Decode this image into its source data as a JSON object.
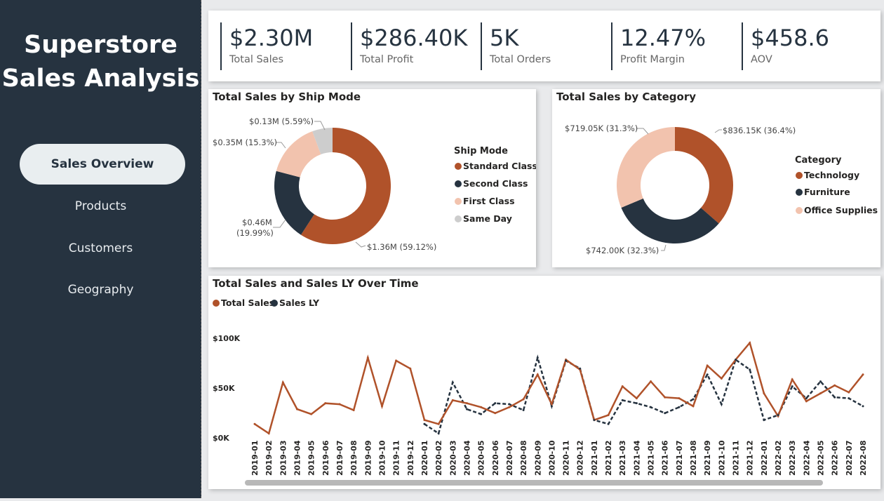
{
  "sidebar": {
    "title_line1": "Superstore",
    "title_line2": "Sales Analysis",
    "nav": [
      {
        "label": "Sales Overview",
        "active": true
      },
      {
        "label": "Products",
        "active": false
      },
      {
        "label": "Customers",
        "active": false
      },
      {
        "label": "Geography",
        "active": false
      }
    ]
  },
  "kpis": [
    {
      "value": "$2.30M",
      "label": "Total Sales"
    },
    {
      "value": "$286.40K",
      "label": "Total Profit"
    },
    {
      "value": "5K",
      "label": "Total Orders"
    },
    {
      "value": "12.47%",
      "label": "Profit Margin"
    },
    {
      "value": "$458.6",
      "label": "AOV"
    }
  ],
  "colors": {
    "accent": "#b0522a",
    "dark": "#263340",
    "light": "#f2c3ae",
    "grey": "#cdcdcd"
  },
  "chart_data": [
    {
      "type": "pie",
      "title": "Total Sales by Ship Mode",
      "legend_title": "Ship Mode",
      "legend_position": "right",
      "slices": [
        {
          "name": "Standard Class",
          "value": 1.36,
          "percent": 59.12,
          "label": "$1.36M (59.12%)",
          "color": "#b0522a"
        },
        {
          "name": "Second Class",
          "value": 0.46,
          "percent": 19.99,
          "label_line1": "$0.46M",
          "label_line2": "(19.99%)",
          "color": "#263340"
        },
        {
          "name": "First Class",
          "value": 0.35,
          "percent": 15.3,
          "label": "$0.35M (15.3%)",
          "color": "#f2c3ae"
        },
        {
          "name": "Same Day",
          "value": 0.13,
          "percent": 5.59,
          "label": "$0.13M (5.59%)",
          "color": "#cdcdcd"
        }
      ]
    },
    {
      "type": "pie",
      "title": "Total Sales by Category",
      "legend_title": "Category",
      "legend_position": "right",
      "slices": [
        {
          "name": "Technology",
          "value": 836.15,
          "percent": 36.4,
          "label": "$836.15K (36.4%)",
          "color": "#b0522a"
        },
        {
          "name": "Furniture",
          "value": 742.0,
          "percent": 32.3,
          "label": "$742.00K (32.3%)",
          "color": "#263340"
        },
        {
          "name": "Office Supplies",
          "value": 719.05,
          "percent": 31.3,
          "label": "$719.05K (31.3%)",
          "color": "#f2c3ae"
        }
      ]
    },
    {
      "type": "line",
      "title": "Total Sales and Sales LY Over Time",
      "legend_position": "top-left",
      "y_ticks": [
        "$100K",
        "$50K",
        "$0K"
      ],
      "ylim": [
        0,
        100000
      ],
      "x": [
        "2019-01",
        "2019-02",
        "2019-03",
        "2019-04",
        "2019-05",
        "2019-06",
        "2019-07",
        "2019-08",
        "2019-09",
        "2019-10",
        "2019-11",
        "2019-12",
        "2020-01",
        "2020-02",
        "2020-03",
        "2020-04",
        "2020-05",
        "2020-06",
        "2020-07",
        "2020-08",
        "2020-09",
        "2020-10",
        "2020-11",
        "2020-12",
        "2021-01",
        "2021-02",
        "2021-03",
        "2021-04",
        "2021-05",
        "2021-06",
        "2021-07",
        "2021-08",
        "2021-09",
        "2021-10",
        "2021-11",
        "2021-12",
        "2022-01",
        "2022-02",
        "2022-03",
        "2022-04",
        "2022-05",
        "2022-06",
        "2022-07",
        "2022-08"
      ],
      "series": [
        {
          "name": "Total Sales",
          "color": "#b0522a",
          "dash": false,
          "values": [
            14000,
            4500,
            56000,
            29000,
            24000,
            35000,
            34000,
            28000,
            81000,
            32000,
            78000,
            70000,
            18000,
            14000,
            38000,
            35000,
            31000,
            25000,
            31000,
            39000,
            64000,
            34000,
            79000,
            69000,
            18000,
            23000,
            52000,
            40000,
            57000,
            41000,
            40000,
            32000,
            73000,
            60000,
            79000,
            96000,
            45000,
            22000,
            59000,
            37000,
            45000,
            53000,
            46000,
            64000
          ]
        },
        {
          "name": "Sales LY",
          "color": "#263340",
          "dash": true,
          "values": [
            null,
            null,
            null,
            null,
            null,
            null,
            null,
            null,
            null,
            null,
            null,
            null,
            14000,
            4500,
            56000,
            29000,
            24000,
            35000,
            34000,
            28000,
            81000,
            32000,
            78000,
            70000,
            18000,
            14000,
            38000,
            35000,
            31000,
            25000,
            31000,
            39000,
            64000,
            34000,
            79000,
            69000,
            18000,
            23000,
            52000,
            40000,
            57000,
            41000,
            40000,
            32000
          ]
        }
      ]
    }
  ]
}
